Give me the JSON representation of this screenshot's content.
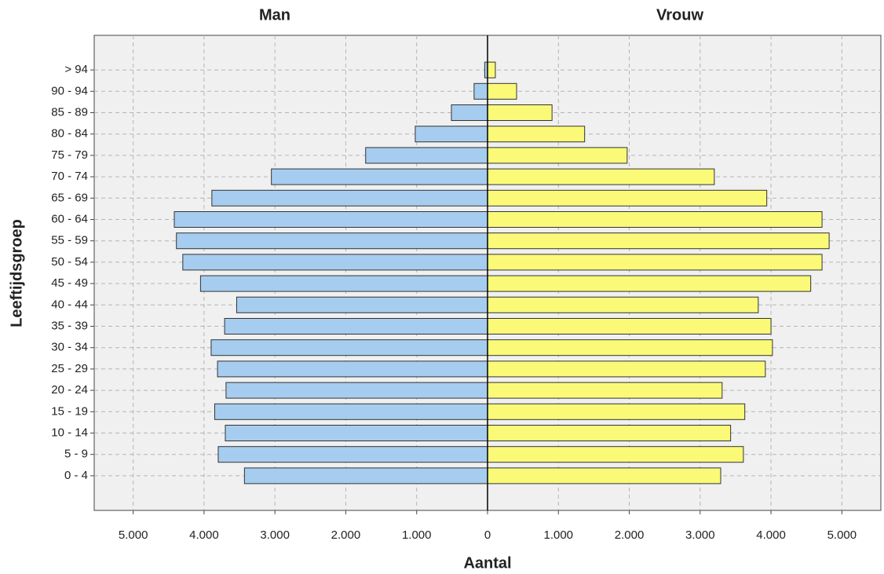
{
  "chart_data": {
    "type": "pyramid",
    "title_left": "Man",
    "title_right": "Vrouw",
    "x_label": "Aantal",
    "y_label": "Leeftijdsgroep",
    "categories": [
      "0 - 4",
      "5 - 9",
      "10 - 14",
      "15 - 19",
      "20 - 24",
      "25 - 29",
      "30 - 34",
      "35 - 39",
      "40 - 44",
      "45 - 49",
      "50 - 54",
      "55 - 59",
      "60 - 64",
      "65 - 69",
      "70 - 74",
      "75 - 79",
      "80 - 84",
      "85 - 89",
      "90 - 94",
      "> 94"
    ],
    "series": [
      {
        "name": "Man",
        "side": "left",
        "color": "#a6cdf0",
        "values": [
          3430,
          3800,
          3700,
          3850,
          3690,
          3810,
          3900,
          3710,
          3540,
          4050,
          4300,
          4390,
          4420,
          3890,
          3050,
          1720,
          1020,
          510,
          190,
          40
        ]
      },
      {
        "name": "Vrouw",
        "side": "right",
        "color": "#fafa78",
        "values": [
          3290,
          3610,
          3430,
          3630,
          3310,
          3920,
          4020,
          4000,
          3820,
          4560,
          4720,
          4820,
          4720,
          3940,
          3200,
          1970,
          1370,
          910,
          410,
          110
        ]
      }
    ],
    "xlim": [
      0,
      5550
    ],
    "xticks": [
      0,
      {
        "value": 1000,
        "label": "1.000"
      },
      {
        "value": 2000,
        "label": "2.000"
      },
      {
        "value": 3000,
        "label": "3.000"
      },
      {
        "value": 4000,
        "label": "4.000"
      },
      {
        "value": 5000,
        "label": "5.000"
      }
    ],
    "grid": true
  }
}
